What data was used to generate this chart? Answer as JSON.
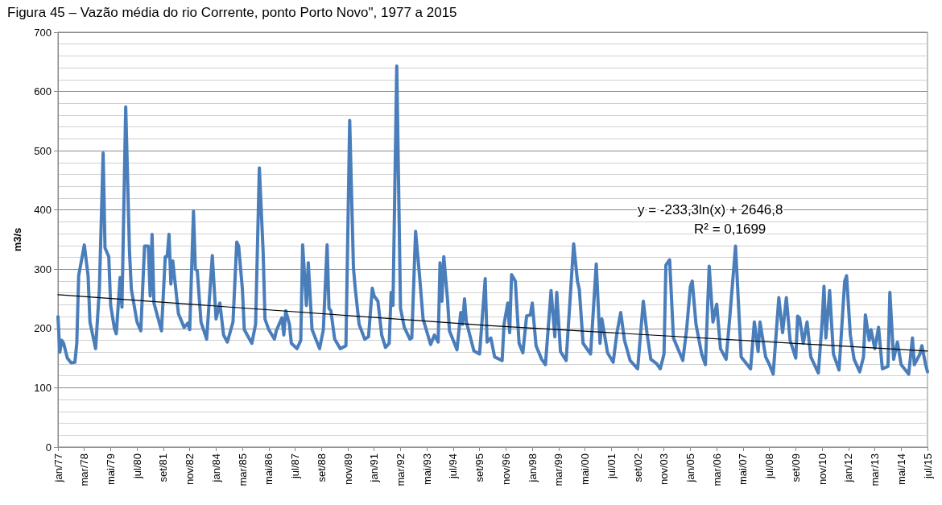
{
  "chart_data": {
    "type": "line",
    "title": "Figura 45 – Vazão média do rio Corrente, ponto Porto Novo\", 1977 a 2015",
    "ylabel": "m3/s",
    "xlim": [
      "1977-01",
      "2015-07"
    ],
    "xticks": [
      {
        "value": "1977-01",
        "label": "jan/77"
      },
      {
        "value": "1978-03",
        "label": "mar/78"
      },
      {
        "value": "1979-05",
        "label": "mai/79"
      },
      {
        "value": "1980-07",
        "label": "jul/80"
      },
      {
        "value": "1981-09",
        "label": "set/81"
      },
      {
        "value": "1982-11",
        "label": "nov/82"
      },
      {
        "value": "1984-01",
        "label": "jan/84"
      },
      {
        "value": "1985-03",
        "label": "mar/85"
      },
      {
        "value": "1986-05",
        "label": "mai/86"
      },
      {
        "value": "1987-07",
        "label": "jul/87"
      },
      {
        "value": "1988-09",
        "label": "set/88"
      },
      {
        "value": "1989-11",
        "label": "nov/89"
      },
      {
        "value": "1991-01",
        "label": "jan/91"
      },
      {
        "value": "1992-03",
        "label": "mar/92"
      },
      {
        "value": "1993-05",
        "label": "mai/93"
      },
      {
        "value": "1994-07",
        "label": "jul/94"
      },
      {
        "value": "1995-09",
        "label": "set/95"
      },
      {
        "value": "1996-11",
        "label": "nov/96"
      },
      {
        "value": "1998-01",
        "label": "jan/98"
      },
      {
        "value": "1999-03",
        "label": "mar/99"
      },
      {
        "value": "2000-05",
        "label": "mai/00"
      },
      {
        "value": "2001-07",
        "label": "jul/01"
      },
      {
        "value": "2002-09",
        "label": "set/02"
      },
      {
        "value": "2003-11",
        "label": "nov/03"
      },
      {
        "value": "2005-01",
        "label": "jan/05"
      },
      {
        "value": "2006-03",
        "label": "mar/06"
      },
      {
        "value": "2007-05",
        "label": "mai/07"
      },
      {
        "value": "2008-07",
        "label": "jul/08"
      },
      {
        "value": "2009-09",
        "label": "set/09"
      },
      {
        "value": "2010-11",
        "label": "nov/10"
      },
      {
        "value": "2012-01",
        "label": "jan/12"
      },
      {
        "value": "2013-03",
        "label": "mar/13"
      },
      {
        "value": "2014-05",
        "label": "mai/14"
      },
      {
        "value": "2015-07",
        "label": "jul/15"
      }
    ],
    "ylim": [
      0,
      700
    ],
    "yticks": [
      0,
      100,
      200,
      300,
      400,
      500,
      600,
      700
    ],
    "grid": "y",
    "marker": "none",
    "line_style": "solid",
    "annotations": [
      "y = -233,3ln(x) + 2646,8",
      "R² = 0,1699"
    ],
    "series": [
      {
        "color": "#4a7ebb",
        "x": [
          "1977-01",
          "1977-02",
          "1977-03",
          "1977-04",
          "1977-06",
          "1977-08",
          "1977-10",
          "1977-11",
          "1977-12",
          "1978-03",
          "1978-05",
          "1978-06",
          "1978-09",
          "1978-11",
          "1979-01",
          "1979-02",
          "1979-04",
          "1979-05",
          "1979-07",
          "1979-08",
          "1979-10",
          "1979-11",
          "1980-01",
          "1980-03",
          "1980-04",
          "1980-07",
          "1980-09",
          "1980-11",
          "1981-01",
          "1981-02",
          "1981-03",
          "1981-04",
          "1981-08",
          "1981-10",
          "1981-11",
          "1981-12",
          "1982-01",
          "1982-02",
          "1982-05",
          "1982-08",
          "1982-10",
          "1982-11",
          "1983-01",
          "1983-02",
          "1983-03",
          "1983-05",
          "1983-08",
          "1983-11",
          "1984-01",
          "1984-03",
          "1984-05",
          "1984-07",
          "1984-10",
          "1984-12",
          "1985-01",
          "1985-03",
          "1985-04",
          "1985-08",
          "1985-10",
          "1985-12",
          "1986-02",
          "1986-03",
          "1986-05",
          "1986-08",
          "1986-09",
          "1986-11",
          "1986-12",
          "1987-01",
          "1987-02",
          "1987-04",
          "1987-05",
          "1987-08",
          "1987-10",
          "1987-11",
          "1988-01",
          "1988-02",
          "1988-04",
          "1988-08",
          "1988-10",
          "1988-12",
          "1989-01",
          "1989-02",
          "1989-04",
          "1989-07",
          "1989-10",
          "1989-12",
          "1990-02",
          "1990-03",
          "1990-05",
          "1990-08",
          "1990-10",
          "1990-12",
          "1991-01",
          "1991-03",
          "1991-05",
          "1991-07",
          "1991-09",
          "1991-10",
          "1991-11",
          "1992-01",
          "1992-03",
          "1992-05",
          "1992-08",
          "1992-09",
          "1992-11",
          "1993-01",
          "1993-03",
          "1993-07",
          "1993-09",
          "1993-11",
          "1993-12",
          "1994-01",
          "1994-02",
          "1994-04",
          "1994-05",
          "1994-09",
          "1994-11",
          "1994-12",
          "1995-01",
          "1995-02",
          "1995-06",
          "1995-09",
          "1995-12",
          "1996-01",
          "1996-03",
          "1996-05",
          "1996-09",
          "1996-10",
          "1996-12",
          "1997-01",
          "1997-02",
          "1997-04",
          "1997-06",
          "1997-08",
          "1997-10",
          "1997-12",
          "1998-01",
          "1998-03",
          "1998-06",
          "1998-08",
          "1998-11",
          "1999-01",
          "1999-02",
          "1999-04",
          "1999-07",
          "1999-11",
          "2000-01",
          "2000-02",
          "2000-04",
          "2000-08",
          "2000-11",
          "2001-01",
          "2001-02",
          "2001-05",
          "2001-08",
          "2001-10",
          "2001-12",
          "2002-02",
          "2002-05",
          "2002-09",
          "2002-12",
          "2003-02",
          "2003-04",
          "2003-07",
          "2003-09",
          "2003-11",
          "2003-12",
          "2004-02",
          "2004-04",
          "2004-09",
          "2004-11",
          "2005-01",
          "2005-02",
          "2005-04",
          "2005-07",
          "2005-09",
          "2005-11",
          "2006-01",
          "2006-03",
          "2006-05",
          "2006-08",
          "2006-10",
          "2007-01",
          "2007-04",
          "2007-09",
          "2007-11",
          "2008-01",
          "2008-02",
          "2008-05",
          "2008-07",
          "2008-09",
          "2008-12",
          "2009-02",
          "2009-04",
          "2009-06",
          "2009-09",
          "2009-10",
          "2009-11",
          "2010-01",
          "2010-03",
          "2010-05",
          "2010-09",
          "2010-11",
          "2010-12",
          "2011-01",
          "2011-03",
          "2011-05",
          "2011-08",
          "2011-11",
          "2011-12",
          "2012-02",
          "2012-04",
          "2012-07",
          "2012-09",
          "2012-10",
          "2012-12",
          "2013-01",
          "2013-03",
          "2013-05",
          "2013-07",
          "2013-10",
          "2013-11",
          "2014-01",
          "2014-03",
          "2014-05",
          "2014-09",
          "2014-11",
          "2014-12",
          "2015-03",
          "2015-04",
          "2015-06",
          "2015-07"
        ],
        "values": [
          220,
          160,
          180,
          175,
          150,
          142,
          143,
          175,
          289,
          341,
          289,
          211,
          166,
          266,
          496,
          336,
          321,
          239,
          200,
          191,
          286,
          236,
          574,
          330,
          266,
          211,
          196,
          339,
          339,
          255,
          359,
          243,
          196,
          321,
          321,
          359,
          275,
          314,
          225,
          202,
          209,
          198,
          398,
          300,
          298,
          211,
          182,
          323,
          216,
          243,
          189,
          177,
          211,
          346,
          339,
          266,
          198,
          175,
          207,
          471,
          330,
          216,
          198,
          182,
          196,
          211,
          218,
          189,
          230,
          207,
          175,
          166,
          180,
          341,
          239,
          311,
          198,
          166,
          198,
          341,
          234,
          230,
          182,
          166,
          171,
          551,
          302,
          266,
          207,
          182,
          186,
          268,
          255,
          246,
          189,
          168,
          175,
          261,
          239,
          643,
          234,
          202,
          182,
          184,
          364,
          293,
          216,
          173,
          189,
          177,
          311,
          246,
          321,
          248,
          196,
          164,
          227,
          207,
          250,
          211,
          162,
          157,
          284,
          177,
          184,
          152,
          146,
          207,
          243,
          193,
          291,
          280,
          175,
          159,
          221,
          223,
          243,
          171,
          148,
          139,
          264,
          186,
          261,
          161,
          146,
          343,
          280,
          266,
          175,
          157,
          309,
          175,
          216,
          159,
          143,
          193,
          227,
          180,
          146,
          132,
          246,
          191,
          148,
          141,
          132,
          157,
          307,
          316,
          184,
          146,
          198,
          271,
          280,
          207,
          157,
          139,
          305,
          211,
          241,
          166,
          148,
          221,
          339,
          152,
          132,
          211,
          161,
          211,
          152,
          139,
          123,
          252,
          193,
          252,
          180,
          150,
          221,
          218,
          175,
          211,
          152,
          125,
          211,
          271,
          184,
          264,
          157,
          130,
          280,
          289,
          189,
          148,
          127,
          152,
          223,
          180,
          198,
          166,
          202,
          132,
          136,
          261,
          148,
          177,
          139,
          123,
          184,
          139,
          157,
          171,
          139,
          127
        ]
      },
      {
        "color": "#000000",
        "x": [
          "1977-01",
          "1996-01",
          "2015-07"
        ],
        "values": [
          257,
          205,
          162
        ]
      }
    ]
  }
}
